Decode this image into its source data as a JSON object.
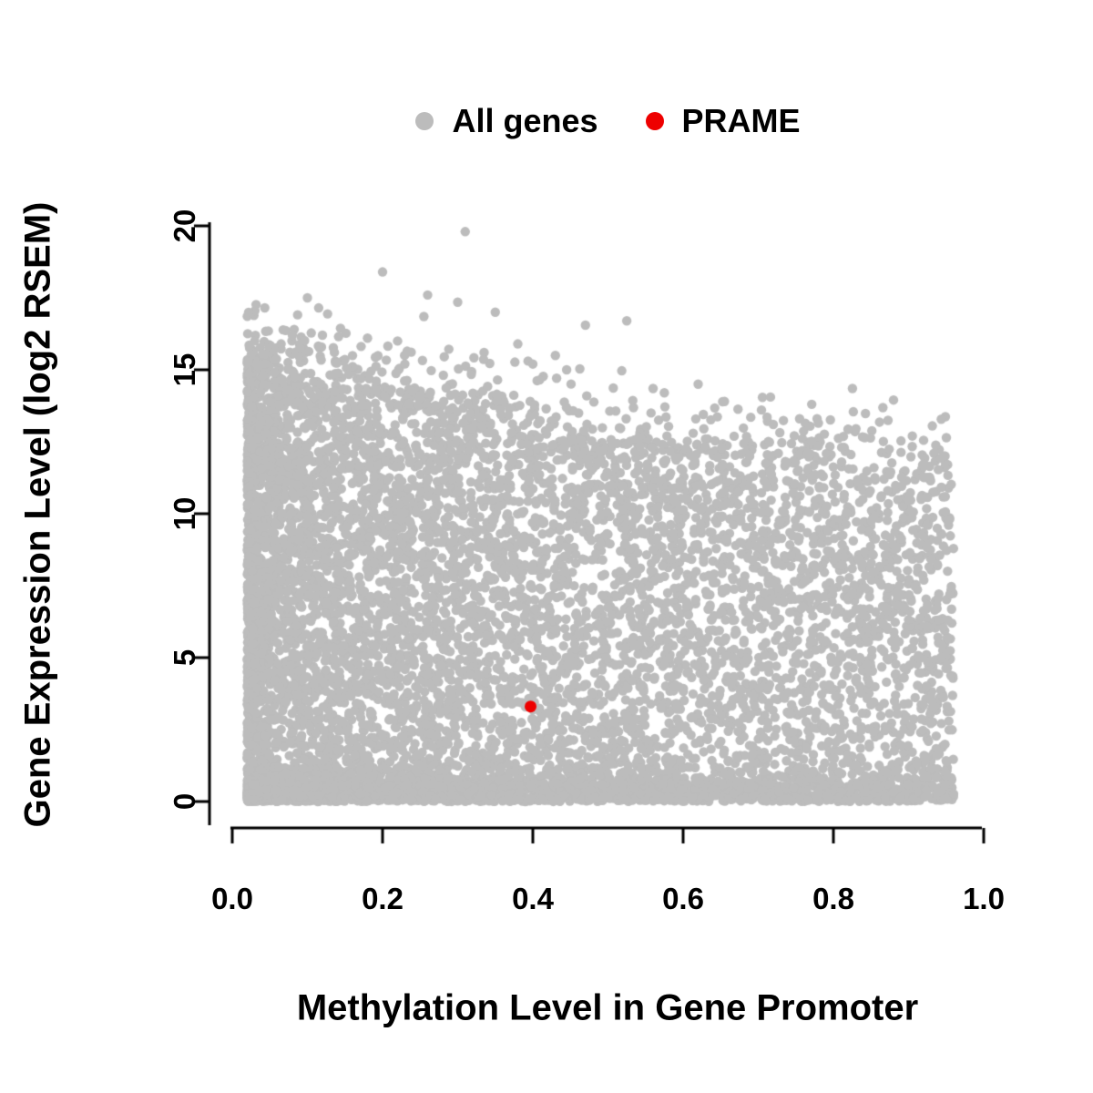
{
  "chart_data": {
    "type": "scatter",
    "title": "",
    "xlabel": "Methylation Level in Gene Promoter",
    "ylabel": "Gene Expression Level (log2 RSEM)",
    "xlim": [
      0.0,
      1.0
    ],
    "ylim": [
      0,
      20
    ],
    "x_ticks": [
      "0.0",
      "0.2",
      "0.4",
      "0.6",
      "0.8",
      "1.0"
    ],
    "x_tick_values": [
      0.0,
      0.2,
      0.4,
      0.6,
      0.8,
      1.0
    ],
    "y_ticks": [
      "0",
      "5",
      "10",
      "15",
      "20"
    ],
    "y_tick_values": [
      0,
      5,
      10,
      15,
      20
    ],
    "grid": false,
    "legend_position": "top-center",
    "axis_color": "#000000",
    "background_color": "#ffffff",
    "series": [
      {
        "name": "All genes",
        "color": "#bcbcbc",
        "marker": "filled-circle",
        "n_points_approx": 9000,
        "x_range": [
          0.02,
          0.96
        ],
        "y_range": [
          0,
          19.8
        ],
        "generator": {
          "seed": 1234,
          "x_power": 1.6,
          "bottom_band_frac": 0.2,
          "top_fuzz_frac": 0.015,
          "envelope": [
            [
              0.02,
              15.6
            ],
            [
              0.15,
              15.2
            ],
            [
              0.3,
              14.3
            ],
            [
              0.45,
              13.3
            ],
            [
              0.6,
              12.8
            ],
            [
              0.8,
              12.6
            ],
            [
              0.96,
              12.2
            ]
          ]
        },
        "outlier_points": [
          [
            0.31,
            19.8
          ],
          [
            0.2,
            18.4
          ],
          [
            0.26,
            17.6
          ],
          [
            0.1,
            17.5
          ],
          [
            0.3,
            17.35
          ],
          [
            0.115,
            17.15
          ],
          [
            0.35,
            17.0
          ],
          [
            0.255,
            16.85
          ],
          [
            0.525,
            16.7
          ],
          [
            0.47,
            16.55
          ],
          [
            0.08,
            16.2
          ],
          [
            0.18,
            16.1
          ],
          [
            0.22,
            16.0
          ],
          [
            0.065,
            15.9
          ],
          [
            0.38,
            15.9
          ],
          [
            0.43,
            15.5
          ],
          [
            0.4,
            15.2
          ],
          [
            0.445,
            15.0
          ],
          [
            0.62,
            14.5
          ],
          [
            0.56,
            14.35
          ],
          [
            0.575,
            14.2
          ],
          [
            0.88,
            13.95
          ],
          [
            0.655,
            13.9
          ],
          [
            0.69,
            13.35
          ],
          [
            0.755,
            13.3
          ],
          [
            0.78,
            13.15
          ],
          [
            0.72,
            13.1
          ],
          [
            0.83,
            12.95
          ],
          [
            0.905,
            12.7
          ],
          [
            0.92,
            12.55
          ]
        ]
      },
      {
        "name": "PRAME",
        "color": "#ee0000",
        "marker": "filled-circle",
        "points": [
          [
            0.397,
            3.3
          ]
        ]
      }
    ],
    "legend": [
      {
        "label": "All genes",
        "color": "#bcbcbc"
      },
      {
        "label": "PRAME",
        "color": "#ee0000"
      }
    ]
  }
}
